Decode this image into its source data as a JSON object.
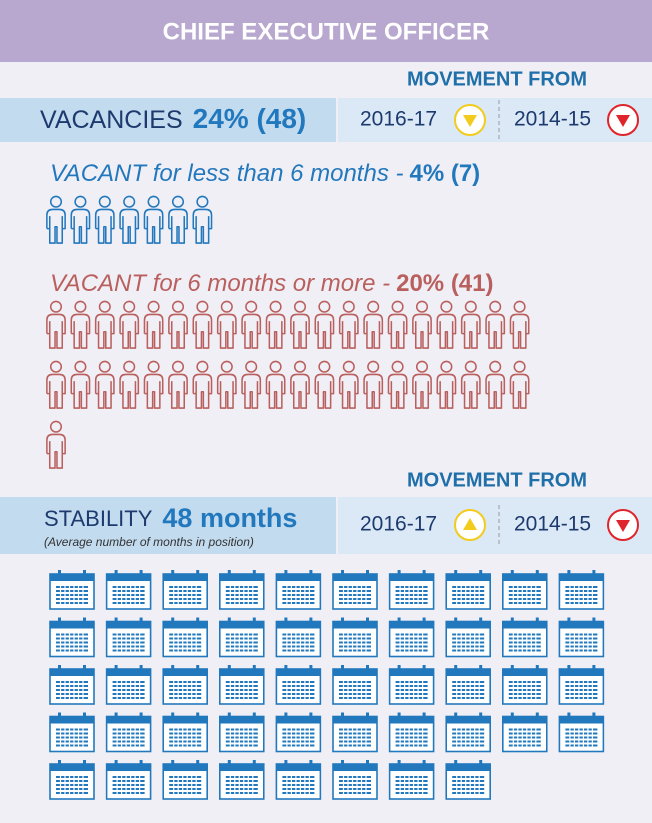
{
  "header": {
    "title": "CHIEF EXECUTIVE OFFICER"
  },
  "vacancies": {
    "movement_heading": "MOVEMENT FROM",
    "label": "VACANCIES",
    "value_label": "24% (48)",
    "comparisons": [
      {
        "period": "2016-17",
        "direction": "down",
        "color": "#f2cb1d"
      },
      {
        "period": "2014-15",
        "direction": "down",
        "color": "#e0242b"
      }
    ],
    "groups": [
      {
        "label": "VACANT for less than 6 months -",
        "value_label": "4% (7)",
        "count": 7,
        "color": "#2278bd"
      },
      {
        "label": "VACANT for 6 months or more -",
        "value_label": "20% (41)",
        "count": 41,
        "color": "#b9605e"
      }
    ]
  },
  "stability": {
    "movement_heading": "MOVEMENT FROM",
    "label": "STABILITY",
    "value_label": "48 months",
    "note": "(Average number of months in position)",
    "count": 48,
    "color": "#2278bd",
    "comparisons": [
      {
        "period": "2016-17",
        "direction": "up",
        "color": "#f2cb1d"
      },
      {
        "period": "2014-15",
        "direction": "down",
        "color": "#e0242b"
      }
    ]
  }
}
